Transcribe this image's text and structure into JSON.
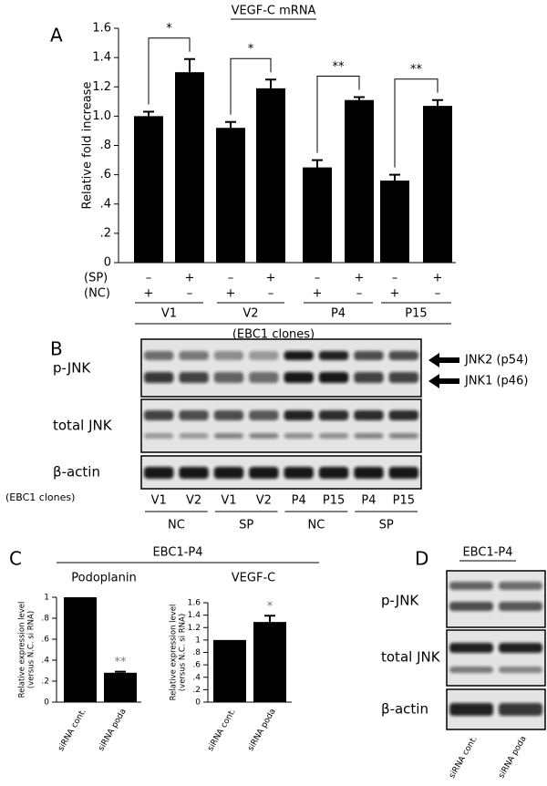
{
  "chart_data": [
    {
      "type": "bar",
      "title": "VEGF-C mRNA",
      "y_label": "Relative fold increase",
      "values": [
        1.0,
        1.3,
        0.92,
        1.19,
        0.65,
        1.11,
        0.56,
        1.07
      ],
      "errors": [
        0.03,
        0.09,
        0.04,
        0.06,
        0.05,
        0.02,
        0.04,
        0.04
      ],
      "color": "#000000",
      "ylim": [
        0,
        1.6
      ],
      "yticks": [
        0,
        {
          "value": 0.2,
          "label": ".2"
        },
        {
          "value": 0.4,
          "label": ".4"
        },
        {
          "value": 0.6,
          "label": ".6"
        },
        {
          "value": 0.8,
          "label": ".8"
        },
        {
          "value": 1,
          "label": "1.0"
        },
        1.2,
        1.4,
        1.6
      ],
      "significance": [
        "*",
        "*",
        "**",
        "**"
      ],
      "treatment_rows": [
        {
          "label": "(SP)",
          "signs": [
            "–",
            "+",
            "–",
            "+",
            "–",
            "+",
            "–",
            "+"
          ]
        },
        {
          "label": "(NC)",
          "signs": [
            "+",
            "–",
            "+",
            "–",
            "+",
            "–",
            "+",
            "–"
          ]
        }
      ],
      "groups": [
        "V1",
        "V2",
        "P4",
        "P15"
      ],
      "group_caption": "(EBC1 clones)"
    },
    {
      "type": "bar",
      "title": "Podoplanin",
      "y_label": [
        "Relative expression level",
        "(versus N.C. si RNA)"
      ],
      "categories": [
        "siRNA cont.",
        "siRNA poda"
      ],
      "values": [
        1.0,
        0.28
      ],
      "errors": [
        null,
        0.01
      ],
      "color": "#000000",
      "ylim": [
        0,
        1
      ],
      "yticks": [
        0,
        {
          "value": 0.2,
          "label": ".2"
        },
        {
          "value": 0.4,
          "label": ".4"
        },
        {
          "value": 0.6,
          "label": ".6"
        },
        {
          "value": 0.8,
          "label": ".8"
        },
        1
      ],
      "significance": [
        null,
        "**"
      ]
    },
    {
      "type": "bar",
      "title": "VEGF-C",
      "y_label": [
        "Relative expression level",
        "(versus N.C. si RNA)"
      ],
      "categories": [
        "siRNA cont.",
        "siRNA poda"
      ],
      "values": [
        1.0,
        1.29
      ],
      "errors": [
        null,
        0.1
      ],
      "color": "#000000",
      "ylim": [
        0,
        1.6
      ],
      "yticks": [
        0,
        {
          "value": 0.2,
          "label": ".2"
        },
        {
          "value": 0.4,
          "label": ".4"
        },
        {
          "value": 0.6,
          "label": ".6"
        },
        {
          "value": 0.8,
          "label": ".8"
        },
        1,
        1.2,
        1.4,
        1.6
      ],
      "significance": [
        null,
        "*"
      ]
    }
  ],
  "panel_labels": [
    "A",
    "B",
    "C",
    "D"
  ],
  "panel_c_header": "EBC1-P4",
  "blot_b": {
    "rows": [
      "p-JNK",
      "total JNK",
      "β-actin"
    ],
    "lane_caption": "(EBC1 clones)",
    "lanes": [
      "V1",
      "V2",
      "V1",
      "V2",
      "P4",
      "P15",
      "P4",
      "P15"
    ],
    "groups": [
      "NC",
      "SP",
      "NC",
      "SP"
    ],
    "arrows": [
      "JNK2 (p54)",
      "JNK1 (p46)"
    ]
  },
  "blot_d": {
    "header": "EBC1-P4",
    "rows": [
      "p-JNK",
      "total JNK",
      "β-actin"
    ],
    "lanes": [
      "siRNA cont.",
      "siRNA poda"
    ]
  }
}
